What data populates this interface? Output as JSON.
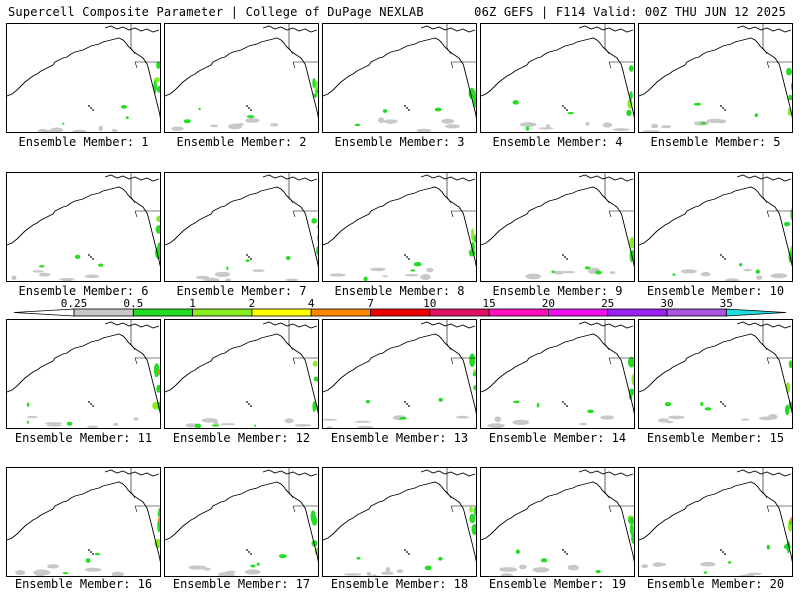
{
  "header": {
    "left": "Supercell Composite Parameter | College of DuPage NEXLAB",
    "right": "06Z GEFS | F114 Valid: 00Z THU JUN 12 2025"
  },
  "panels": [
    {
      "label": "Ensemble Member: 1"
    },
    {
      "label": "Ensemble Member: 2"
    },
    {
      "label": "Ensemble Member: 3"
    },
    {
      "label": "Ensemble Member: 4"
    },
    {
      "label": "Ensemble Member: 5"
    },
    {
      "label": "Ensemble Member: 6"
    },
    {
      "label": "Ensemble Member: 7"
    },
    {
      "label": "Ensemble Member: 8"
    },
    {
      "label": "Ensemble Member: 9"
    },
    {
      "label": "Ensemble Member: 10"
    },
    {
      "label": "Ensemble Member: 11"
    },
    {
      "label": "Ensemble Member: 12"
    },
    {
      "label": "Ensemble Member: 13"
    },
    {
      "label": "Ensemble Member: 14"
    },
    {
      "label": "Ensemble Member: 15"
    },
    {
      "label": "Ensemble Member: 16"
    },
    {
      "label": "Ensemble Member: 17"
    },
    {
      "label": "Ensemble Member: 18"
    },
    {
      "label": "Ensemble Member: 19"
    },
    {
      "label": "Ensemble Member: 20"
    }
  ],
  "scale": {
    "ticks": [
      "0.25",
      "0.5",
      "1",
      "2",
      "4",
      "7",
      "10",
      "15",
      "20",
      "25",
      "30",
      "35"
    ],
    "colors": [
      "#c8c8c8",
      "#22dd22",
      "#88ee22",
      "#ffff00",
      "#ff8800",
      "#ee0000",
      "#dd1166",
      "#ff11bb",
      "#ee11ee",
      "#9922ee",
      "#aa55dd",
      "#22dddd"
    ]
  }
}
